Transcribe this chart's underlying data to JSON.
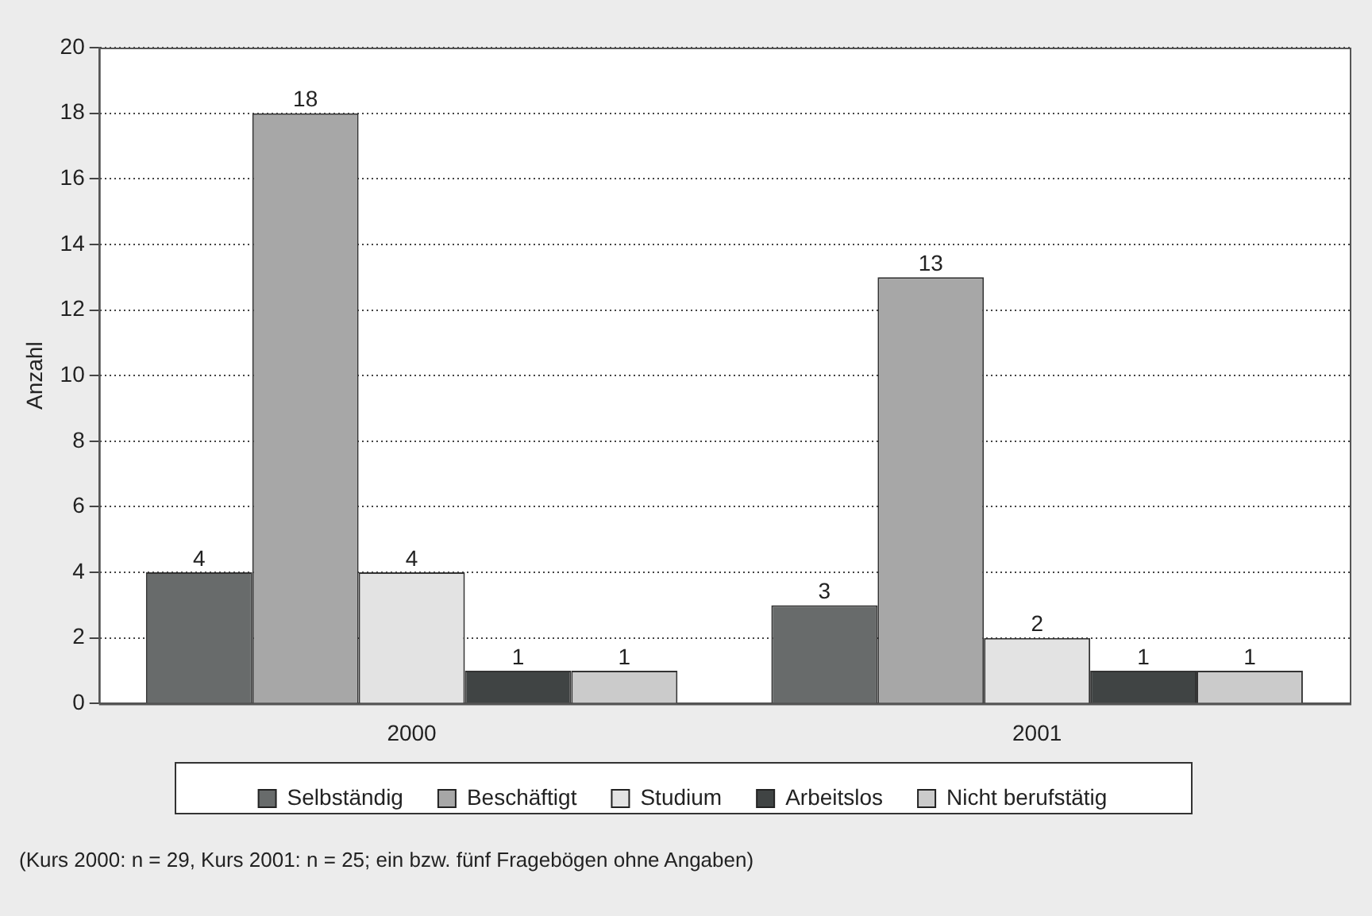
{
  "chart_data": {
    "type": "bar",
    "ylabel": "Anzahl",
    "categories": [
      "2000",
      "2001"
    ],
    "series": [
      {
        "name": "Selbständig",
        "color": "#686b6b",
        "values": [
          4,
          3
        ]
      },
      {
        "name": "Beschäftigt",
        "color": "#a7a7a7",
        "values": [
          18,
          13
        ]
      },
      {
        "name": "Studium",
        "color": "#e3e3e3",
        "values": [
          4,
          2
        ]
      },
      {
        "name": "Arbeitslos",
        "color": "#404444",
        "values": [
          1,
          1
        ]
      },
      {
        "name": "Nicht berufstätig",
        "color": "#cbcbcb",
        "values": [
          1,
          1
        ]
      }
    ],
    "ylim": [
      0,
      20
    ],
    "yticks": [
      0,
      2,
      4,
      6,
      8,
      10,
      12,
      14,
      16,
      18,
      20
    ],
    "grid": "y",
    "legend": "bottom",
    "data_labels": true,
    "annotations": [
      "(Kurs 2000: n = 29, Kurs 2001: n = 25; ein bzw. fünf Fragebögen ohne Angaben)"
    ]
  }
}
